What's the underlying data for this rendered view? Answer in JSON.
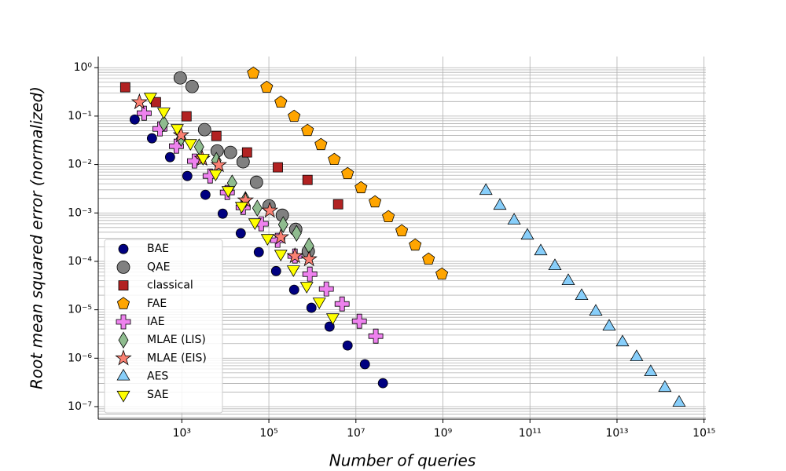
{
  "chart_data": {
    "type": "scatter",
    "x_label": "Number of queries",
    "y_label": "Root mean squared error (normalized)",
    "x_scale": "log",
    "y_scale": "log",
    "grid": true,
    "minor_grid": true,
    "legend": "lower left",
    "xlim": [
      12,
      1100000000000000.0
    ],
    "ylim": [
      5.5e-08,
      1.7
    ],
    "xticks": [
      {
        "value": 1000.0,
        "label": "10³"
      },
      {
        "value": 100000.0,
        "label": "10⁵"
      },
      {
        "value": 10000000.0,
        "label": "10⁷"
      },
      {
        "value": 1000000000.0,
        "label": "10⁹"
      },
      {
        "value": 100000000000.0,
        "label": "10¹¹"
      },
      {
        "value": 10000000000000.0,
        "label": "10¹³"
      },
      {
        "value": 1000000000000000.0,
        "label": "10¹⁵"
      }
    ],
    "yticks": [
      {
        "value": 1,
        "label": "10⁰"
      },
      {
        "value": 0.1,
        "label": "10⁻¹"
      },
      {
        "value": 0.01,
        "label": "10⁻²"
      },
      {
        "value": 0.001,
        "label": "10⁻³"
      },
      {
        "value": 0.0001,
        "label": "10⁻⁴"
      },
      {
        "value": 1e-05,
        "label": "10⁻⁵"
      },
      {
        "value": 1e-06,
        "label": "10⁻⁶"
      },
      {
        "value": 1e-07,
        "label": "10⁻⁷"
      }
    ],
    "series": [
      {
        "name": "BAE",
        "color": "#000080",
        "marker": "circle",
        "x": [
          82.6,
          206,
          536,
          1337,
          3483,
          8690,
          22600,
          58700,
          146600,
          381000,
          951000,
          2480000,
          6440000,
          16100000,
          41800000
        ],
        "values": [
          0.085,
          0.0348,
          0.0142,
          0.0058,
          0.00237,
          0.000966,
          0.00038,
          0.000155,
          6.3e-05,
          2.59e-05,
          1.1e-05,
          4.49e-06,
          1.83e-06,
          7.5e-07,
          3.05e-07
        ]
      },
      {
        "name": "QAE",
        "color": "#808080",
        "marker": "big-circle",
        "x": [
          920,
          1720,
          3330,
          6490,
          13100,
          25600,
          51900,
          101000,
          204000,
          414000,
          805000
        ],
        "values": [
          0.615,
          0.408,
          0.0525,
          0.0191,
          0.0178,
          0.0114,
          0.0043,
          0.0014,
          0.000897,
          0.000458,
          0.000161
        ]
      },
      {
        "name": "classical",
        "color": "#b22222",
        "marker": "square",
        "x": [
          50,
          254,
          1280,
          6220,
          31500,
          161000,
          773000,
          3900000
        ],
        "values": [
          0.394,
          0.194,
          0.099,
          0.0389,
          0.0178,
          0.00875,
          0.00481,
          0.00151
        ]
      },
      {
        "name": "FAE",
        "color": "#ffa500",
        "marker": "pentagon",
        "x": [
          44000,
          89000,
          188000,
          381000,
          773000,
          1570000,
          3180000,
          6440000,
          13100000,
          27500000,
          55800000,
          113000000,
          230000000,
          466000000,
          944000000
        ],
        "values": [
          0.77,
          0.394,
          0.194,
          0.0989,
          0.0505,
          0.0258,
          0.0127,
          0.00649,
          0.00331,
          0.00169,
          0.000834,
          0.000426,
          0.000217,
          0.000111,
          5.46e-05
        ]
      },
      {
        "name": "IAE",
        "color": "#ee82ee",
        "marker": "plus",
        "x": [
          136,
          313,
          748,
          1950,
          4470,
          11100,
          25600,
          66500,
          159000,
          397000,
          875000,
          2090000,
          4810000,
          12000000,
          28700000
        ],
        "values": [
          0.115,
          0.0545,
          0.0239,
          0.0118,
          0.0058,
          0.00265,
          0.0013,
          0.000596,
          0.000272,
          0.000129,
          5.46e-05,
          2.69e-05,
          1.32e-05,
          5.8e-06,
          2.86e-06
        ]
      },
      {
        "name": "MLAE (LIS)",
        "color": "#8fbc8f",
        "marker": "diamond",
        "x": [
          385,
          960,
          2490,
          6220,
          14300,
          29000,
          54100,
          213000,
          432000,
          839000
        ],
        "values": [
          0.0706,
          0.0348,
          0.0231,
          0.0122,
          0.00415,
          0.00189,
          0.00126,
          0.000574,
          0.00038,
          0.000209
        ]
      },
      {
        "name": "MLAE (EIS)",
        "color": "#fa8072",
        "marker": "star",
        "x": [
          106,
          960,
          2940,
          7050,
          29000,
          105000,
          188000,
          397000,
          839000
        ],
        "values": [
          0.194,
          0.0404,
          0.0132,
          0.00977,
          0.00182,
          0.00112,
          0.000316,
          0.000129,
          0.000111
        ]
      },
      {
        "name": "AES",
        "color": "#87cefa",
        "marker": "triangle-up",
        "x": [
          9700000000.0,
          20400000000.0,
          43200000000.0,
          87500000000.0,
          177000000000.0,
          375000000000.0,
          760000000000.0,
          1540000000000.0,
          3260000000000.0,
          6610000000000.0,
          13400000000000.0,
          28200000000000.0,
          59700000000000.0,
          126000000000000.0,
          267000000000000.0
        ],
        "values": [
          0.00285,
          0.0014,
          0.000692,
          0.00034,
          0.000161,
          7.94e-05,
          3.91e-05,
          1.92e-05,
          9.1e-06,
          4.49e-06,
          2.12e-06,
          1.05e-06,
          5.15e-07,
          2.44e-07,
          1.2e-07
        ]
      },
      {
        "name": "SAE",
        "color": "#ffff00",
        "marker": "triangle-down",
        "x": [
          190,
          385,
          780,
          1580,
          3070,
          5970,
          11600,
          23600,
          47800,
          92900,
          188000,
          366000,
          741000,
          1440000,
          2940000
        ],
        "values": [
          0.251,
          0.124,
          0.0565,
          0.0278,
          0.0137,
          0.00649,
          0.00296,
          0.0014,
          0.000641,
          0.000304,
          0.000144,
          6.84e-05,
          3.12e-05,
          1.48e-05,
          7e-06
        ]
      }
    ]
  }
}
